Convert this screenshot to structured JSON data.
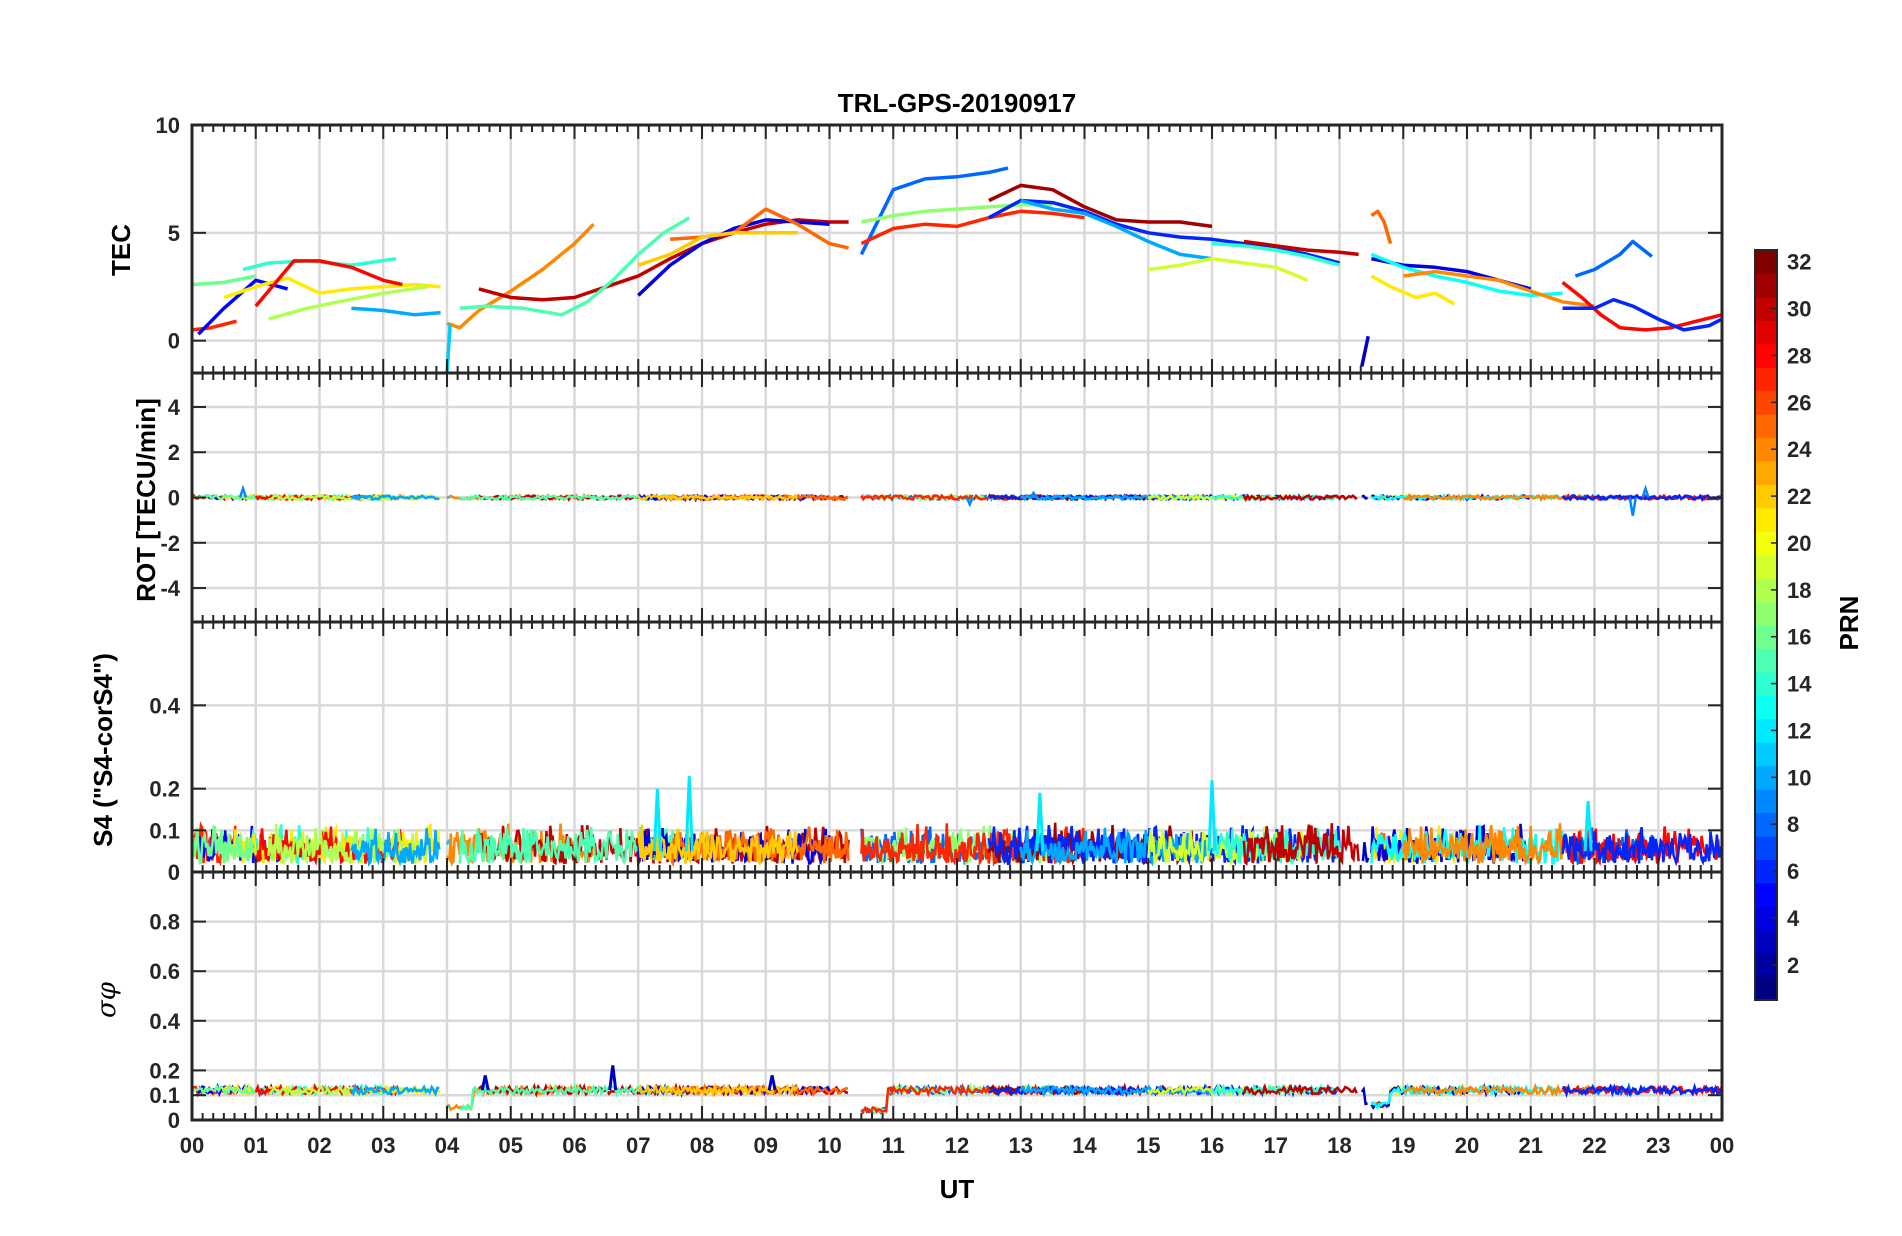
{
  "chart_data": [
    {
      "type": "line",
      "panel": "tec",
      "title": "TRL-GPS-20190917",
      "ylabel": "TEC",
      "ylim": [
        -1.5,
        10
      ],
      "yticks": [
        "0",
        "5",
        "10"
      ],
      "xlim": [
        0,
        24
      ],
      "grid": true,
      "series": [
        {
          "prn": 27,
          "x": [
            0.0,
            0.3,
            0.7
          ],
          "y": [
            0.5,
            0.6,
            0.9
          ]
        },
        {
          "prn": 5,
          "x": [
            0.1,
            0.5,
            1.0,
            1.5
          ],
          "y": [
            0.3,
            1.5,
            2.8,
            2.4
          ]
        },
        {
          "prn": 14,
          "x": [
            0.8,
            1.2,
            1.8,
            2.5,
            3.2
          ],
          "y": [
            3.3,
            3.6,
            3.7,
            3.5,
            3.8
          ]
        },
        {
          "prn": 21,
          "x": [
            0.5,
            1.0,
            1.5,
            2.0,
            2.5,
            3.0,
            3.5,
            3.9
          ],
          "y": [
            2.0,
            2.5,
            2.9,
            2.2,
            2.4,
            2.5,
            2.6,
            2.5
          ]
        },
        {
          "prn": 16,
          "x": [
            0.0,
            0.5,
            1.0
          ],
          "y": [
            2.6,
            2.7,
            3.0
          ]
        },
        {
          "prn": 28,
          "x": [
            1.0,
            1.6,
            2.0,
            2.5,
            3.0,
            3.3
          ],
          "y": [
            1.6,
            3.7,
            3.7,
            3.4,
            2.8,
            2.6
          ]
        },
        {
          "prn": 18,
          "x": [
            1.2,
            1.8,
            2.3,
            3.0,
            3.7
          ],
          "y": [
            1.0,
            1.5,
            1.8,
            2.2,
            2.5
          ]
        },
        {
          "prn": 10,
          "x": [
            2.5,
            3.0,
            3.5,
            3.9
          ],
          "y": [
            1.5,
            1.4,
            1.2,
            1.3
          ]
        },
        {
          "prn": 24,
          "x": [
            4.0,
            4.2,
            4.5,
            5.0,
            5.5,
            6.0,
            6.3
          ],
          "y": [
            0.8,
            0.6,
            1.4,
            2.3,
            3.3,
            4.5,
            5.4
          ]
        },
        {
          "prn": 30,
          "x": [
            4.5,
            5.0,
            5.5,
            6.0,
            6.5,
            7.0,
            7.5,
            8.0,
            8.5,
            9.0,
            9.5,
            10.0,
            10.3
          ],
          "y": [
            2.4,
            2.0,
            1.9,
            2.0,
            2.5,
            3.0,
            3.8,
            4.5,
            5.0,
            5.4,
            5.6,
            5.5,
            5.5
          ]
        },
        {
          "prn": 15,
          "x": [
            4.2,
            4.6,
            5.2,
            5.8,
            6.2,
            6.6,
            7.0,
            7.4,
            7.8
          ],
          "y": [
            1.5,
            1.6,
            1.5,
            1.2,
            1.8,
            2.8,
            4.0,
            5.0,
            5.7
          ]
        },
        {
          "prn": 4,
          "x": [
            7.0,
            7.5,
            8.0,
            8.5,
            9.0,
            9.5,
            10.0
          ],
          "y": [
            2.1,
            3.5,
            4.5,
            5.2,
            5.6,
            5.5,
            5.4
          ]
        },
        {
          "prn": 25,
          "x": [
            7.5,
            8.0,
            8.5,
            9.0,
            9.5,
            10.0,
            10.3
          ],
          "y": [
            4.7,
            4.8,
            5.0,
            6.1,
            5.4,
            4.5,
            4.3
          ]
        },
        {
          "prn": 22,
          "x": [
            7.0,
            7.5,
            8.0,
            8.5,
            9.0,
            9.5
          ],
          "y": [
            3.5,
            4.0,
            4.8,
            5.0,
            5.0,
            5.0
          ]
        },
        {
          "prn": 8,
          "x": [
            10.5,
            11.0,
            11.5,
            12.0,
            12.5,
            12.8
          ],
          "y": [
            4.0,
            7.0,
            7.5,
            7.6,
            7.8,
            8.0
          ]
        },
        {
          "prn": 17,
          "x": [
            10.5,
            11.0,
            11.5,
            12.0,
            12.5,
            13.0,
            13.5
          ],
          "y": [
            5.5,
            5.8,
            6.0,
            6.1,
            6.2,
            6.3,
            6.3
          ]
        },
        {
          "prn": 27,
          "x": [
            10.5,
            11.0,
            11.5,
            12.0,
            12.5,
            13.0,
            13.5,
            14.0
          ],
          "y": [
            4.5,
            5.2,
            5.4,
            5.3,
            5.7,
            6.0,
            5.9,
            5.7
          ]
        },
        {
          "prn": 31,
          "x": [
            12.5,
            13.0,
            13.5,
            14.0,
            14.5,
            15.0,
            15.5,
            16.0
          ],
          "y": [
            6.5,
            7.2,
            7.0,
            6.2,
            5.6,
            5.5,
            5.5,
            5.3
          ]
        },
        {
          "prn": 6,
          "x": [
            12.5,
            13.0,
            13.5,
            14.0,
            14.5,
            15.0,
            15.5,
            16.0,
            16.5,
            17.0,
            17.5,
            18.0
          ],
          "y": [
            5.7,
            6.5,
            6.4,
            6.0,
            5.4,
            5.0,
            4.8,
            4.7,
            4.5,
            4.3,
            4.0,
            3.6
          ]
        },
        {
          "prn": 10,
          "x": [
            13.0,
            13.5,
            14.0,
            14.5,
            15.0,
            15.5,
            16.0
          ],
          "y": [
            6.5,
            6.1,
            5.9,
            5.3,
            4.6,
            4.0,
            3.8
          ]
        },
        {
          "prn": 19,
          "x": [
            15.0,
            15.5,
            16.0,
            16.5,
            17.0,
            17.5
          ],
          "y": [
            3.3,
            3.5,
            3.8,
            3.6,
            3.4,
            2.8
          ]
        },
        {
          "prn": 14,
          "x": [
            16.0,
            16.5,
            17.0,
            17.5,
            18.0
          ],
          "y": [
            4.5,
            4.4,
            4.2,
            3.9,
            3.5
          ]
        },
        {
          "prn": 30,
          "x": [
            16.5,
            17.0,
            17.5,
            18.0,
            18.3
          ],
          "y": [
            4.6,
            4.4,
            4.2,
            4.1,
            4.0
          ]
        },
        {
          "prn": 25,
          "x": [
            18.5,
            18.6,
            18.7,
            18.8
          ],
          "y": [
            5.8,
            6.0,
            5.5,
            4.5
          ]
        },
        {
          "prn": 21,
          "x": [
            18.5,
            18.8,
            19.2,
            19.5,
            19.8
          ],
          "y": [
            3.0,
            2.5,
            2.0,
            2.2,
            1.7
          ]
        },
        {
          "prn": 4,
          "x": [
            18.5,
            19.0,
            19.5,
            20.0,
            20.5,
            21.0
          ],
          "y": [
            3.8,
            3.5,
            3.4,
            3.2,
            2.8,
            2.4
          ]
        },
        {
          "prn": 13,
          "x": [
            18.5,
            19.0,
            19.5,
            20.0,
            20.5,
            21.0,
            21.5
          ],
          "y": [
            4.0,
            3.4,
            3.0,
            2.7,
            2.3,
            2.1,
            2.2
          ]
        },
        {
          "prn": 24,
          "x": [
            19.0,
            19.5,
            20.0,
            20.5,
            21.0,
            21.5,
            22.0
          ],
          "y": [
            3.0,
            3.2,
            3.0,
            2.8,
            2.3,
            1.8,
            1.6
          ]
        },
        {
          "prn": 8,
          "x": [
            21.7,
            22.0,
            22.4,
            22.6,
            22.9
          ],
          "y": [
            3.0,
            3.3,
            4.0,
            4.6,
            3.9
          ]
        },
        {
          "prn": 28,
          "x": [
            21.5,
            21.8,
            22.1,
            22.4,
            22.8,
            23.2,
            23.6,
            24.0
          ],
          "y": [
            2.7,
            2.0,
            1.2,
            0.6,
            0.5,
            0.6,
            0.9,
            1.2
          ]
        },
        {
          "prn": 6,
          "x": [
            21.5,
            22.0,
            22.3,
            22.6,
            23.0,
            23.4,
            23.8,
            24.0
          ],
          "y": [
            1.5,
            1.5,
            1.9,
            1.6,
            1.0,
            0.5,
            0.7,
            1.0
          ]
        },
        {
          "prn": 3,
          "x": [
            18.35,
            18.45
          ],
          "y": [
            -1.2,
            0.2
          ]
        },
        {
          "prn": 11,
          "x": [
            4.0,
            4.05
          ],
          "y": [
            -1.5,
            0.8
          ]
        }
      ]
    },
    {
      "type": "line",
      "panel": "rot",
      "ylabel": "ROT [TECU/min]",
      "ylim": [
        -5.5,
        5.5
      ],
      "yticks": [
        "-4",
        "-2",
        "0",
        "2",
        "4"
      ],
      "xlim": [
        0,
        24
      ],
      "grid": true,
      "baseline": 0,
      "peaks": [
        {
          "x": 0.8,
          "y": 0.4
        },
        {
          "x": 12.2,
          "y": -0.3
        },
        {
          "x": 22.6,
          "y": -0.8
        },
        {
          "x": 22.8,
          "y": 0.4
        },
        {
          "x": 13.2,
          "y": 0.2
        }
      ]
    },
    {
      "type": "line",
      "panel": "s4",
      "ylabel": "S4 (\"S4-corS4\")",
      "ylim": [
        0,
        0.6
      ],
      "yticks": [
        "0",
        "0.1",
        "0.2",
        "0.4"
      ],
      "xlim": [
        0,
        24
      ],
      "grid": true,
      "typical_range": [
        0.02,
        0.12
      ],
      "peaks": [
        {
          "x": 7.3,
          "y": 0.2
        },
        {
          "x": 7.8,
          "y": 0.23
        },
        {
          "x": 16.0,
          "y": 0.22
        },
        {
          "x": 13.3,
          "y": 0.19
        },
        {
          "x": 21.9,
          "y": 0.17
        }
      ]
    },
    {
      "type": "line",
      "panel": "sigma_phi",
      "ylabel": "σφ",
      "xlabel": "UT",
      "ylim": [
        0,
        1
      ],
      "yticks": [
        "0",
        "0.1",
        "0.2",
        "0.4",
        "0.6",
        "0.8"
      ],
      "xlim": [
        0,
        24
      ],
      "xticks": [
        "00",
        "01",
        "02",
        "03",
        "04",
        "05",
        "06",
        "07",
        "08",
        "09",
        "10",
        "11",
        "12",
        "13",
        "14",
        "15",
        "16",
        "17",
        "18",
        "19",
        "20",
        "21",
        "22",
        "23",
        "00"
      ],
      "grid": true,
      "baseline": 0.12,
      "dips": [
        {
          "x0": 3.9,
          "x1": 4.4,
          "y": 0.05
        },
        {
          "x0": 10.5,
          "x1": 10.9,
          "y": 0.04
        },
        {
          "x0": 18.4,
          "x1": 18.8,
          "y": 0.06
        }
      ],
      "peaks": [
        {
          "x": 6.6,
          "y": 0.22
        },
        {
          "x": 4.6,
          "y": 0.18
        },
        {
          "x": 9.1,
          "y": 0.18
        }
      ]
    }
  ],
  "colorbar": {
    "label": "PRN",
    "min": 1,
    "max": 32,
    "ticks": [
      "2",
      "4",
      "6",
      "8",
      "10",
      "12",
      "14",
      "16",
      "18",
      "20",
      "22",
      "24",
      "26",
      "28",
      "30",
      "32"
    ]
  }
}
